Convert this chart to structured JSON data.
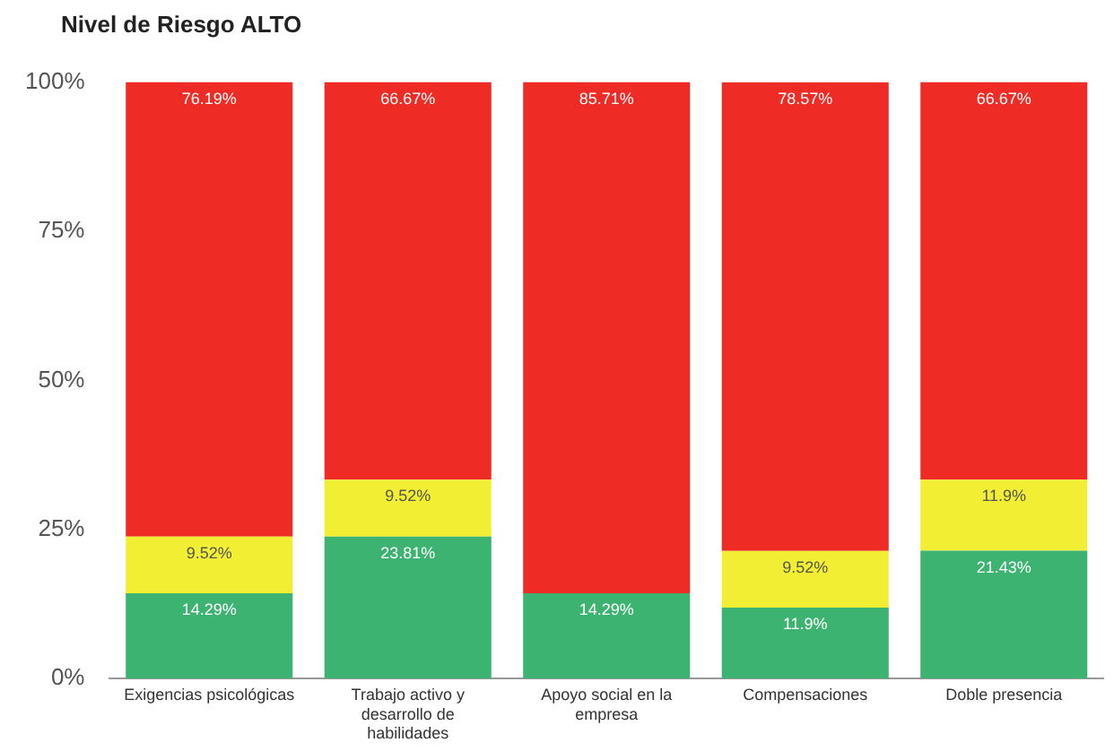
{
  "chart_data": {
    "type": "bar",
    "title": "Nivel de Riesgo ALTO",
    "stacked": true,
    "categories": [
      "Exigencias psicológicas",
      "Trabajo activo y desarrollo de habilidades",
      "Apoyo social en la empresa",
      "Compensaciones",
      "Doble presencia"
    ],
    "series": [
      {
        "color": "#3cb371",
        "values": [
          14.29,
          23.81,
          14.29,
          11.9,
          21.43
        ],
        "value_labels": [
          "14.29%",
          "23.81%",
          "14.29%",
          "11.9%",
          "21.43%"
        ]
      },
      {
        "color": "#f2ee33",
        "values": [
          9.52,
          9.52,
          null,
          9.52,
          11.9
        ],
        "value_labels": [
          "9.52%",
          "9.52%",
          null,
          "9.52%",
          "11.9%"
        ]
      },
      {
        "color": "#ee2b24",
        "values": [
          76.19,
          66.67,
          85.71,
          78.57,
          66.67
        ],
        "value_labels": [
          "76.19%",
          "66.67%",
          "85.71%",
          "78.57%",
          "66.67%"
        ]
      }
    ],
    "ylim": [
      0,
      100
    ],
    "yticks": [
      {
        "value": 0,
        "label": "0%"
      },
      {
        "value": 25,
        "label": "25%"
      },
      {
        "value": 50,
        "label": "50%"
      },
      {
        "value": 75,
        "label": "75%"
      },
      {
        "value": 100,
        "label": "100%"
      }
    ],
    "grid": false,
    "legend": false
  }
}
